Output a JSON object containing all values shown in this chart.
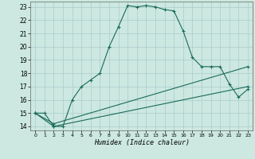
{
  "xlabel": "Humidex (Indice chaleur)",
  "bg_color": "#cce8e0",
  "line_color": "#1a6b5a",
  "grid_color": "#aacccc",
  "xlim": [
    -0.5,
    23.5
  ],
  "ylim": [
    13.7,
    23.4
  ],
  "xticks": [
    0,
    1,
    2,
    3,
    4,
    5,
    6,
    7,
    8,
    9,
    10,
    11,
    12,
    13,
    14,
    15,
    16,
    17,
    18,
    19,
    20,
    21,
    22,
    23
  ],
  "yticks": [
    14,
    15,
    16,
    17,
    18,
    19,
    20,
    21,
    22,
    23
  ],
  "line1_x": [
    0,
    1,
    2,
    3,
    4,
    5,
    6,
    7,
    8,
    9,
    10,
    11,
    12,
    13,
    14,
    15,
    16,
    17,
    18,
    19,
    20,
    21,
    22,
    23
  ],
  "line1_y": [
    15,
    15,
    14,
    14,
    16,
    17,
    17.5,
    18,
    20,
    21.5,
    23.1,
    23.0,
    23.1,
    23.0,
    22.8,
    22.7,
    21.2,
    19.2,
    18.5,
    18.5,
    18.5,
    17.2,
    16.2,
    16.8
  ],
  "line2_x": [
    0,
    2,
    23
  ],
  "line2_y": [
    15,
    14,
    17.0
  ],
  "line3_x": [
    0,
    2,
    23
  ],
  "line3_y": [
    15,
    14.2,
    18.5
  ]
}
